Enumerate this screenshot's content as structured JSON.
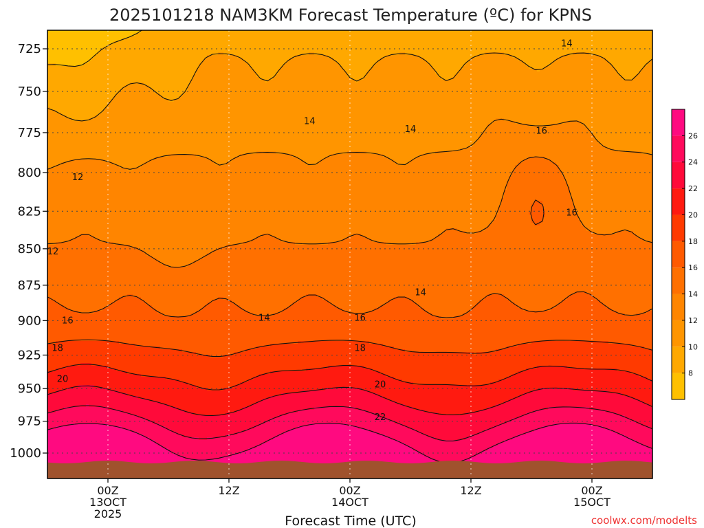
{
  "chart_data": {
    "type": "heatmap",
    "title": "2025101218 NAM3KM Forecast Temperature (ºC) for KPNS",
    "xlabel": "Forecast Time (UTC)",
    "ylabel": "",
    "y_ticks": [
      725,
      750,
      775,
      800,
      825,
      850,
      875,
      900,
      925,
      950,
      975,
      1000
    ],
    "y_scale": "log-pressure",
    "ylim": [
      707,
      1015
    ],
    "x_ticks": [
      {
        "hour": 0,
        "labels": [
          "00Z",
          "13OCT",
          "2025"
        ]
      },
      {
        "hour": 12,
        "labels": [
          "12Z"
        ]
      },
      {
        "hour": 24,
        "labels": [
          "00Z",
          "14OCT"
        ]
      },
      {
        "hour": 36,
        "labels": [
          "12Z"
        ]
      },
      {
        "hour": 48,
        "labels": [
          "00Z",
          "15OCT"
        ]
      }
    ],
    "xlim_hours": [
      -6,
      54
    ],
    "colorbar": {
      "ticks": [
        8,
        10,
        12,
        14,
        16,
        18,
        20,
        22,
        24,
        26
      ],
      "bounds": [
        6,
        8,
        10,
        12,
        14,
        16,
        18,
        20,
        22,
        24,
        26,
        28
      ],
      "colors": [
        "#ffc000",
        "#ffa800",
        "#ff9500",
        "#ff8500",
        "#ff7000",
        "#ff5a00",
        "#ff3a00",
        "#ff1a10",
        "#ff0a3a",
        "#ff0a5c",
        "#ff0a80"
      ]
    },
    "contour_labels": [
      {
        "value": 12,
        "hour": -3.0,
        "p": 803
      },
      {
        "value": 12,
        "hour": -6.0,
        "p": 852
      },
      {
        "value": 14,
        "hour": 20.0,
        "p": 768
      },
      {
        "value": 14,
        "hour": 30.0,
        "p": 773
      },
      {
        "value": 14,
        "hour": 45.5,
        "p": 722
      },
      {
        "value": 14,
        "hour": 15.5,
        "p": 898
      },
      {
        "value": 14,
        "hour": 31.0,
        "p": 880
      },
      {
        "value": 16,
        "hour": 43.0,
        "p": 774
      },
      {
        "value": 16,
        "hour": 46.0,
        "p": 826
      },
      {
        "value": 16,
        "hour": -4.0,
        "p": 900
      },
      {
        "value": 16,
        "hour": 25.0,
        "p": 898
      },
      {
        "value": 18,
        "hour": -5.0,
        "p": 920
      },
      {
        "value": 18,
        "hour": 25.0,
        "p": 920
      },
      {
        "value": 20,
        "hour": -4.5,
        "p": 943
      },
      {
        "value": 20,
        "hour": 27.0,
        "p": 947
      },
      {
        "value": 22,
        "hour": 27.0,
        "p": 972
      }
    ],
    "grid": true,
    "legend": "colorbar-right"
  },
  "watermark": "coolwx.com/modelts",
  "colors": {
    "terrain": "#a0522d",
    "grid": "#444444"
  }
}
